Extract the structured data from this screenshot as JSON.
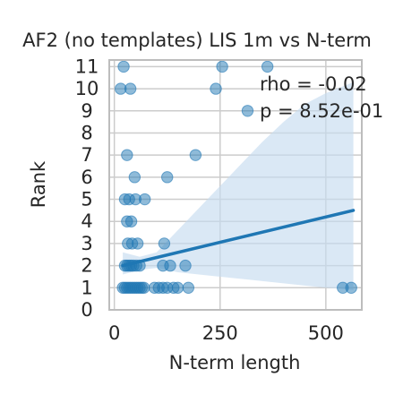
{
  "chart_data": {
    "type": "scatter",
    "title": "AF2 (no templates) LIS 1m vs N-term",
    "xlabel": "N-term length",
    "ylabel": "Rank",
    "xlim": [
      -12,
      585
    ],
    "ylim": [
      0,
      11.3
    ],
    "x_ticks": [
      0,
      250,
      500
    ],
    "y_ticks": [
      0,
      1,
      2,
      3,
      4,
      5,
      6,
      7,
      8,
      9,
      10,
      11
    ],
    "grid": true,
    "annotations": [
      "rho = -0.02",
      "p = 8.52e-01"
    ],
    "colors": {
      "points": "#1f77b4",
      "line": "#1f77b4",
      "band": "#c6dbef",
      "grid": "#cccccc",
      "frame": "#bdbdbd"
    },
    "points": [
      {
        "x": 22,
        "y": 11
      },
      {
        "x": 255,
        "y": 11
      },
      {
        "x": 362,
        "y": 11
      },
      {
        "x": 15,
        "y": 10
      },
      {
        "x": 38,
        "y": 10
      },
      {
        "x": 240,
        "y": 10
      },
      {
        "x": 315,
        "y": 9
      },
      {
        "x": 30,
        "y": 7
      },
      {
        "x": 192,
        "y": 7
      },
      {
        "x": 48,
        "y": 6
      },
      {
        "x": 125,
        "y": 6
      },
      {
        "x": 25,
        "y": 5
      },
      {
        "x": 35,
        "y": 5
      },
      {
        "x": 50,
        "y": 5
      },
      {
        "x": 72,
        "y": 5
      },
      {
        "x": 30,
        "y": 4
      },
      {
        "x": 40,
        "y": 4
      },
      {
        "x": 32,
        "y": 3
      },
      {
        "x": 42,
        "y": 3
      },
      {
        "x": 55,
        "y": 3
      },
      {
        "x": 118,
        "y": 3
      },
      {
        "x": 25,
        "y": 2
      },
      {
        "x": 30,
        "y": 2
      },
      {
        "x": 35,
        "y": 2
      },
      {
        "x": 40,
        "y": 2
      },
      {
        "x": 45,
        "y": 2
      },
      {
        "x": 52,
        "y": 2
      },
      {
        "x": 60,
        "y": 2
      },
      {
        "x": 115,
        "y": 2
      },
      {
        "x": 132,
        "y": 2
      },
      {
        "x": 168,
        "y": 2
      },
      {
        "x": 20,
        "y": 1
      },
      {
        "x": 25,
        "y": 1
      },
      {
        "x": 30,
        "y": 1
      },
      {
        "x": 35,
        "y": 1
      },
      {
        "x": 40,
        "y": 1
      },
      {
        "x": 45,
        "y": 1
      },
      {
        "x": 50,
        "y": 1
      },
      {
        "x": 55,
        "y": 1
      },
      {
        "x": 60,
        "y": 1
      },
      {
        "x": 65,
        "y": 1
      },
      {
        "x": 70,
        "y": 1
      },
      {
        "x": 95,
        "y": 1
      },
      {
        "x": 105,
        "y": 1
      },
      {
        "x": 115,
        "y": 1
      },
      {
        "x": 125,
        "y": 1
      },
      {
        "x": 140,
        "y": 1
      },
      {
        "x": 150,
        "y": 1
      },
      {
        "x": 175,
        "y": 1
      },
      {
        "x": 540,
        "y": 1
      },
      {
        "x": 560,
        "y": 1
      }
    ],
    "regression": {
      "x": [
        20,
        565
      ],
      "y": [
        2.0,
        4.5
      ]
    },
    "confidence_band": {
      "x": [
        20,
        60,
        100,
        150,
        200,
        250,
        300,
        350,
        400,
        450,
        500,
        565
      ],
      "upper": [
        2.6,
        2.4,
        2.6,
        3.6,
        4.6,
        5.6,
        6.6,
        7.6,
        8.5,
        9.3,
        9.8,
        10.3
      ],
      "lower": [
        1.6,
        1.8,
        1.9,
        1.7,
        1.6,
        1.5,
        1.4,
        1.3,
        1.2,
        1.1,
        1.0,
        0.9
      ]
    }
  }
}
